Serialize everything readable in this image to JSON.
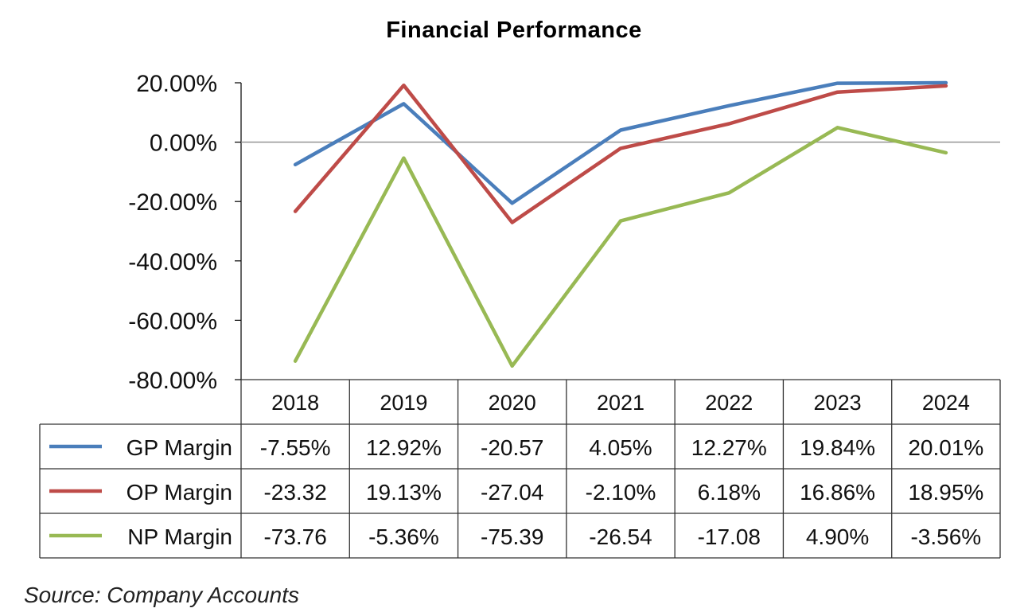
{
  "chart_data": {
    "type": "line",
    "title": "Financial Performance",
    "categories": [
      "2018",
      "2019",
      "2020",
      "2021",
      "2022",
      "2023",
      "2024"
    ],
    "ylim": [
      -80,
      20
    ],
    "yticks": [
      20,
      0,
      -20,
      -40,
      -60,
      -80
    ],
    "ytick_labels": [
      "20.00%",
      "0.00%",
      "-20.00%",
      "-40.00%",
      "-60.00%",
      "-80.00%"
    ],
    "grid": false,
    "legend": "data-table",
    "series": [
      {
        "name": "GP Margin",
        "color": "#4a7ebb",
        "values": [
          -7.55,
          12.92,
          -20.57,
          4.05,
          12.27,
          19.84,
          20.01
        ],
        "labels": [
          "-7.55%",
          "12.92%",
          "-20.57",
          "4.05%",
          "12.27%",
          "19.84%",
          "20.01%"
        ]
      },
      {
        "name": "OP Margin",
        "color": "#be4b48",
        "values": [
          -23.32,
          19.13,
          -27.04,
          -2.1,
          6.18,
          16.86,
          18.95
        ],
        "labels": [
          "-23.32",
          "19.13%",
          "-27.04",
          "-2.10%",
          "6.18%",
          "16.86%",
          "18.95%"
        ]
      },
      {
        "name": "NP Margin",
        "color": "#98b954",
        "values": [
          -73.76,
          -5.36,
          -75.39,
          -26.54,
          -17.08,
          4.9,
          -3.56
        ],
        "labels": [
          "-73.76",
          "-5.36%",
          "-75.39",
          "-26.54",
          "-17.08",
          "4.90%",
          "-3.56%"
        ]
      }
    ]
  },
  "source": "Source: Company Accounts"
}
